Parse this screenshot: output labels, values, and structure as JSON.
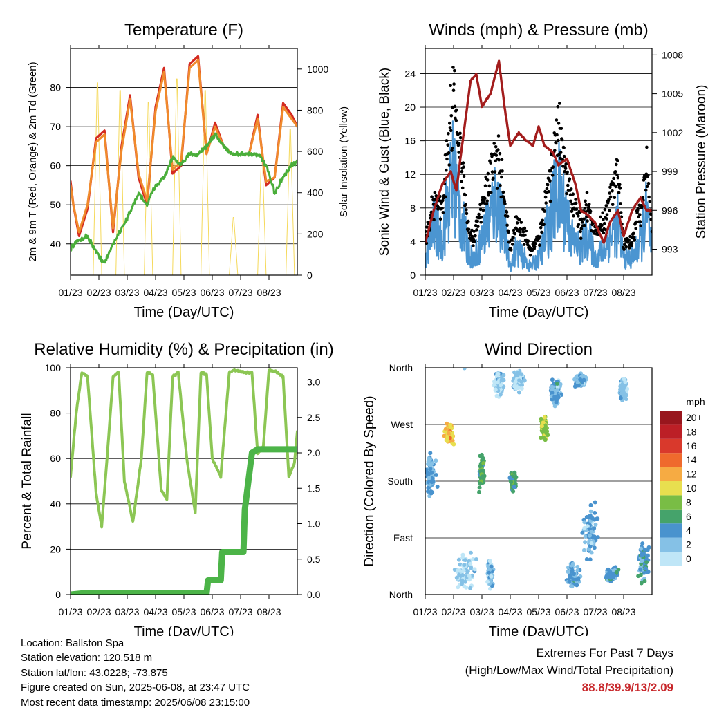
{
  "chart_data": [
    {
      "type": "line",
      "title": "Temperature (F)",
      "xlabel": "Time (Day/UTC)",
      "ylabel": "2m & 9m T (Red, Orange) & 2m Td (Green)",
      "ylabel_right": "Solar Insolation (Yellow)",
      "x_tick_labels": [
        "01/23",
        "02/23",
        "03/23",
        "04/23",
        "05/23",
        "06/23",
        "07/23",
        "08/23"
      ],
      "ylim": [
        32,
        90
      ],
      "y_ticks": [
        40,
        50,
        60,
        70,
        80
      ],
      "ylim_right": [
        0,
        1100
      ],
      "y_ticks_right": [
        0,
        200,
        400,
        600,
        800,
        1000
      ],
      "grid": "horizontal",
      "series": [
        {
          "name": "2m T",
          "color": "#d42a20",
          "axis": "left",
          "x": [
            0,
            0.1,
            0.3,
            0.6,
            0.9,
            1.2,
            1.5,
            1.8,
            2.1,
            2.4,
            2.7,
            3.0,
            3.3,
            3.6,
            3.9,
            4.2,
            4.5,
            4.8,
            5.1,
            5.4,
            5.7,
            6.0,
            6.3,
            6.6,
            6.9,
            7.2,
            7.5,
            7.8,
            8.0
          ],
          "y": [
            56,
            50,
            42,
            49,
            67,
            69,
            43,
            65,
            78,
            57,
            50,
            75,
            85,
            58,
            60,
            86,
            88,
            63,
            71,
            65,
            63,
            63,
            63,
            73,
            55,
            57,
            76,
            73,
            70
          ]
        },
        {
          "name": "9m T",
          "color": "#f08a2c",
          "axis": "left",
          "x": [
            0,
            0.1,
            0.3,
            0.6,
            0.9,
            1.2,
            1.5,
            1.8,
            2.1,
            2.4,
            2.7,
            3.0,
            3.3,
            3.6,
            3.9,
            4.2,
            4.5,
            4.8,
            5.1,
            5.4,
            5.7,
            6.0,
            6.3,
            6.6,
            6.9,
            7.2,
            7.5,
            7.8,
            8.0
          ],
          "y": [
            55,
            50,
            43,
            50,
            66,
            68,
            44,
            64,
            77,
            58,
            51,
            74,
            84,
            59,
            61,
            85,
            87,
            63,
            70,
            65,
            63,
            63,
            63,
            72,
            56,
            57,
            75,
            72,
            70
          ]
        },
        {
          "name": "2m Td",
          "color": "#4aae3a",
          "axis": "left",
          "x": [
            0,
            0.3,
            0.6,
            0.9,
            1.2,
            1.5,
            1.8,
            2.1,
            2.4,
            2.7,
            3.0,
            3.3,
            3.6,
            3.9,
            4.2,
            4.5,
            4.8,
            5.1,
            5.4,
            5.7,
            6.0,
            6.3,
            6.6,
            6.9,
            7.2,
            7.5,
            7.8,
            8.0
          ],
          "y": [
            39,
            41,
            42,
            38,
            35,
            40,
            44,
            48,
            53,
            50,
            55,
            57,
            62,
            60,
            63,
            63,
            65,
            68,
            65,
            63,
            63,
            63,
            63,
            60,
            53,
            57,
            60,
            61
          ]
        },
        {
          "name": "Solar Insolation",
          "color": "#f5d95a",
          "axis": "right",
          "x": [
            0,
            0.2,
            0.8,
            0.95,
            1.1,
            1.6,
            1.75,
            1.9,
            2.6,
            2.75,
            2.9,
            3.6,
            3.75,
            3.9,
            4.6,
            4.75,
            4.9,
            5.6,
            5.75,
            5.9,
            6.6,
            6.75,
            6.9,
            7.6,
            7.75,
            7.9,
            8.0
          ],
          "y": [
            0,
            0,
            0,
            1000,
            0,
            0,
            960,
            0,
            0,
            900,
            0,
            0,
            1020,
            0,
            0,
            960,
            0,
            0,
            300,
            0,
            0,
            650,
            0,
            0,
            760,
            0,
            0
          ]
        }
      ]
    },
    {
      "type": "scatter",
      "title": "Winds (mph) & Pressure (mb)",
      "xlabel": "Time (Day/UTC)",
      "ylabel": "Sonic Wind & Gust (Blue, Black)",
      "ylabel_right": "Station Pressure (Maroon)",
      "x_tick_labels": [
        "01/23",
        "02/23",
        "03/23",
        "04/23",
        "05/23",
        "06/23",
        "07/23",
        "08/23"
      ],
      "ylim": [
        0,
        27
      ],
      "y_ticks": [
        0,
        4,
        8,
        12,
        16,
        20,
        24
      ],
      "ylim_right": [
        991.0,
        1008.5
      ],
      "y_ticks_right": [
        993,
        996,
        999,
        1002,
        1005,
        1008
      ],
      "grid": "horizontal",
      "series": [
        {
          "name": "Station Pressure",
          "color": "#a31c1c",
          "axis": "right",
          "x": [
            0,
            0.3,
            0.6,
            0.9,
            1.1,
            1.3,
            1.6,
            1.8,
            2.0,
            2.3,
            2.6,
            2.8,
            3.0,
            3.3,
            3.5,
            3.8,
            4.0,
            4.2,
            4.5,
            4.7,
            5.0,
            5.3,
            5.5,
            5.8,
            6.0,
            6.3,
            6.5,
            6.8,
            7.0,
            7.3,
            7.6,
            7.8,
            8.0
          ],
          "y": [
            993.5,
            996,
            998,
            999,
            997.5,
            1001,
            1006,
            1006.5,
            1004,
            1005,
            1007.5,
            1004,
            1001,
            1002,
            1001.5,
            1001,
            1002.5,
            1001,
            1000.5,
            999.5,
            1000,
            998,
            996,
            995.5,
            995,
            993.5,
            995,
            996,
            994,
            996,
            997,
            996,
            996
          ]
        },
        {
          "name": "Sonic Wind",
          "color": "#4b95d1",
          "axis": "left",
          "x": [
            0,
            0.3,
            0.6,
            0.8,
            1.0,
            1.2,
            1.5,
            1.7,
            2.0,
            2.2,
            2.5,
            2.7,
            3.0,
            3.2,
            3.5,
            3.7,
            4.0,
            4.2,
            4.5,
            4.7,
            5.0,
            5.2,
            5.5,
            5.7,
            6.0,
            6.3,
            6.6,
            6.8,
            7.0,
            7.3,
            7.6,
            7.8,
            8.0
          ],
          "y": [
            2,
            6,
            4,
            9,
            12,
            8,
            3,
            2,
            4,
            6,
            9,
            7,
            1,
            3,
            2,
            1,
            2,
            4,
            8,
            10,
            7,
            4,
            3,
            5,
            2,
            3,
            5,
            6,
            2,
            2,
            4,
            7,
            3
          ]
        },
        {
          "name": "Gust",
          "color": "#000000",
          "axis": "left",
          "x": [
            0,
            0.3,
            0.6,
            0.8,
            1.0,
            1.2,
            1.5,
            1.7,
            2.0,
            2.2,
            2.5,
            2.7,
            3.0,
            3.2,
            3.5,
            3.7,
            4.0,
            4.2,
            4.5,
            4.7,
            5.0,
            5.2,
            5.5,
            5.7,
            6.0,
            6.3,
            6.6,
            6.8,
            7.0,
            7.3,
            7.6,
            7.8,
            8.0
          ],
          "y": [
            4,
            9,
            8,
            15,
            22,
            16,
            6,
            4,
            8,
            11,
            14,
            12,
            3,
            6,
            5,
            3,
            4,
            8,
            14,
            17,
            12,
            8,
            6,
            9,
            5,
            6,
            10,
            12,
            4,
            4,
            8,
            12,
            6
          ]
        }
      ]
    },
    {
      "type": "line",
      "title": "Relative Humidity (%) & Precipitation (in)",
      "xlabel": "Time (Day/UTC)",
      "ylabel": "Percent & Total Rainfall",
      "x_tick_labels": [
        "01/23",
        "02/23",
        "03/23",
        "04/23",
        "05/23",
        "06/23",
        "07/23",
        "08/23"
      ],
      "ylim": [
        0,
        100
      ],
      "y_ticks": [
        0,
        20,
        40,
        60,
        80,
        100
      ],
      "ylim_right": [
        0,
        3.2
      ],
      "y_ticks_right": [
        0.0,
        0.5,
        1.0,
        1.5,
        2.0,
        2.5,
        3.0
      ],
      "grid": "horizontal",
      "series": [
        {
          "name": "Relative Humidity",
          "color": "#8cc654",
          "axis": "left",
          "x": [
            0,
            0.2,
            0.4,
            0.6,
            0.9,
            1.1,
            1.3,
            1.5,
            1.7,
            1.9,
            2.2,
            2.5,
            2.7,
            2.9,
            3.2,
            3.4,
            3.6,
            3.8,
            4.1,
            4.4,
            4.6,
            4.8,
            5.0,
            5.3,
            5.6,
            5.8,
            6.1,
            6.4,
            6.6,
            6.8,
            7.0,
            7.3,
            7.5,
            7.7,
            7.9,
            8.0
          ],
          "y": [
            52,
            80,
            98,
            96,
            45,
            30,
            62,
            96,
            98,
            50,
            32,
            60,
            98,
            97,
            46,
            42,
            96,
            98,
            60,
            36,
            98,
            97,
            60,
            52,
            98,
            99,
            98,
            98,
            62,
            65,
            99,
            98,
            96,
            52,
            58,
            72
          ]
        },
        {
          "name": "Total Precipitation",
          "color": "#4cb448",
          "axis": "right",
          "x": [
            0,
            0.5,
            1.0,
            4.8,
            4.85,
            5.3,
            5.35,
            6.1,
            6.15,
            6.4,
            6.6,
            8.0
          ],
          "y": [
            0.0,
            0.02,
            0.02,
            0.02,
            0.2,
            0.2,
            0.6,
            0.6,
            1.2,
            2.0,
            2.05,
            2.05
          ]
        }
      ]
    },
    {
      "type": "scatter",
      "title": "Wind Direction",
      "xlabel": "Time (Day/UTC)",
      "ylabel": "Direction (Colored By Speed)",
      "x_tick_labels": [
        "01/23",
        "02/23",
        "03/23",
        "04/23",
        "05/23",
        "06/23",
        "07/23",
        "08/23"
      ],
      "y_tick_labels": [
        "North",
        "East",
        "South",
        "West",
        "North"
      ],
      "ylim": [
        0,
        360
      ],
      "grid": "horizontal",
      "legend_title": "mph",
      "legend_labels": [
        "0",
        "2",
        "4",
        "6",
        "8",
        "10",
        "12",
        "14",
        "16",
        "18",
        "20+"
      ],
      "legend_colors": [
        "#bfe6f7",
        "#85c1e6",
        "#4993ce",
        "#45a36b",
        "#79bd45",
        "#e8df4f",
        "#f6ab43",
        "#ef6a2d",
        "#d9392c",
        "#bc1f26",
        "#98161d"
      ],
      "clusters": [
        {
          "x": 0.2,
          "dir": 190,
          "spread_x": 0.25,
          "spread_d": 40,
          "speed": 3
        },
        {
          "x": 0.85,
          "dir": 255,
          "spread_x": 0.2,
          "spread_d": 20,
          "speed": 11
        },
        {
          "x": 1.4,
          "dir": 30,
          "spread_x": 0.5,
          "spread_d": 50,
          "speed": 1
        },
        {
          "x": 2.0,
          "dir": 195,
          "spread_x": 0.12,
          "spread_d": 40,
          "speed": 6
        },
        {
          "x": 2.3,
          "dir": 30,
          "spread_x": 0.15,
          "spread_d": 30,
          "speed": 2
        },
        {
          "x": 2.6,
          "dir": 335,
          "spread_x": 0.25,
          "spread_d": 25,
          "speed": 1
        },
        {
          "x": 3.1,
          "dir": 180,
          "spread_x": 0.15,
          "spread_d": 20,
          "speed": 6
        },
        {
          "x": 3.3,
          "dir": 340,
          "spread_x": 0.25,
          "spread_d": 20,
          "speed": 1
        },
        {
          "x": 4.2,
          "dir": 265,
          "spread_x": 0.18,
          "spread_d": 25,
          "speed": 9
        },
        {
          "x": 4.6,
          "dir": 320,
          "spread_x": 0.25,
          "spread_d": 30,
          "speed": 3
        },
        {
          "x": 5.2,
          "dir": 30,
          "spread_x": 0.3,
          "spread_d": 25,
          "speed": 3
        },
        {
          "x": 5.5,
          "dir": 340,
          "spread_x": 0.3,
          "spread_d": 15,
          "speed": 3
        },
        {
          "x": 5.8,
          "dir": 100,
          "spread_x": 0.35,
          "spread_d": 60,
          "speed": 3
        },
        {
          "x": 6.6,
          "dir": 30,
          "spread_x": 0.3,
          "spread_d": 15,
          "speed": 4
        },
        {
          "x": 7.0,
          "dir": 325,
          "spread_x": 0.2,
          "spread_d": 30,
          "speed": 2
        },
        {
          "x": 7.7,
          "dir": 50,
          "spread_x": 0.25,
          "spread_d": 40,
          "speed": 4
        }
      ]
    }
  ],
  "info": {
    "location": "Location: Ballston Spa",
    "elevation": "Station elevation: 120.518 m",
    "latlon": "Station lat/lon: 43.0228; -73.875",
    "created": "Figure created on Sun, 2025-06-08, at 23:47 UTC",
    "recent": "Most recent data timestamp: 2025/06/08 23:15:00"
  },
  "extremes": {
    "line1": "Extremes For Past 7 Days",
    "line2": "(High/Low/Max Wind/Total Precipitation)",
    "value": "88.8/39.9/13/2.09"
  }
}
